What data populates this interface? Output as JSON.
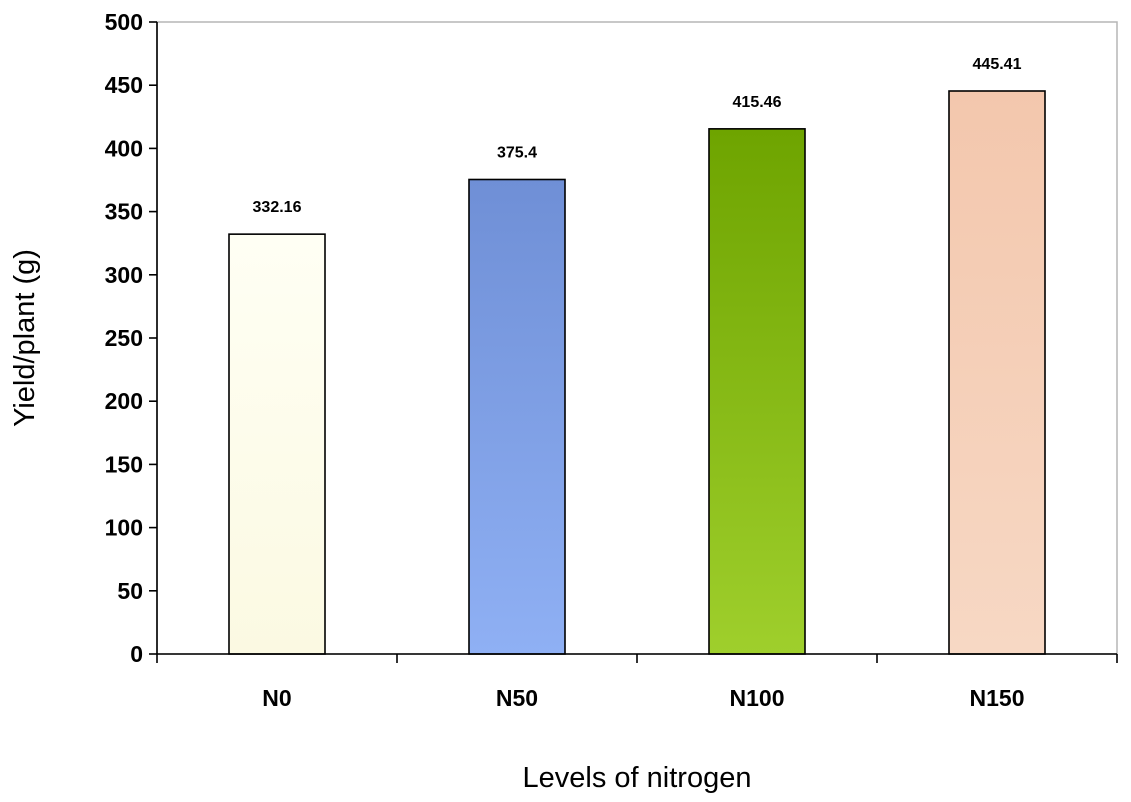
{
  "chart_data": {
    "type": "bar",
    "categories": [
      "N0",
      "N50",
      "N100",
      "N150"
    ],
    "values": [
      332.16,
      375.4,
      415.46,
      445.41
    ],
    "data_labels": [
      "332.16",
      "375.4",
      "415.46",
      "445.41"
    ],
    "bar_colors": [
      [
        "#fffff4",
        "#fbf9e2"
      ],
      [
        "#6f8fd6",
        "#8fb0f4"
      ],
      [
        "#6ea400",
        "#9fcf2c"
      ],
      [
        "#f3c7ad",
        "#f7d8c4"
      ]
    ],
    "xlabel": "Levels of nitrogen",
    "ylabel": "Yield/plant (g)",
    "ylim": [
      0,
      500
    ],
    "yticks": [
      0,
      50,
      100,
      150,
      200,
      250,
      300,
      350,
      400,
      450,
      500
    ],
    "grid": false,
    "legend": "none"
  }
}
